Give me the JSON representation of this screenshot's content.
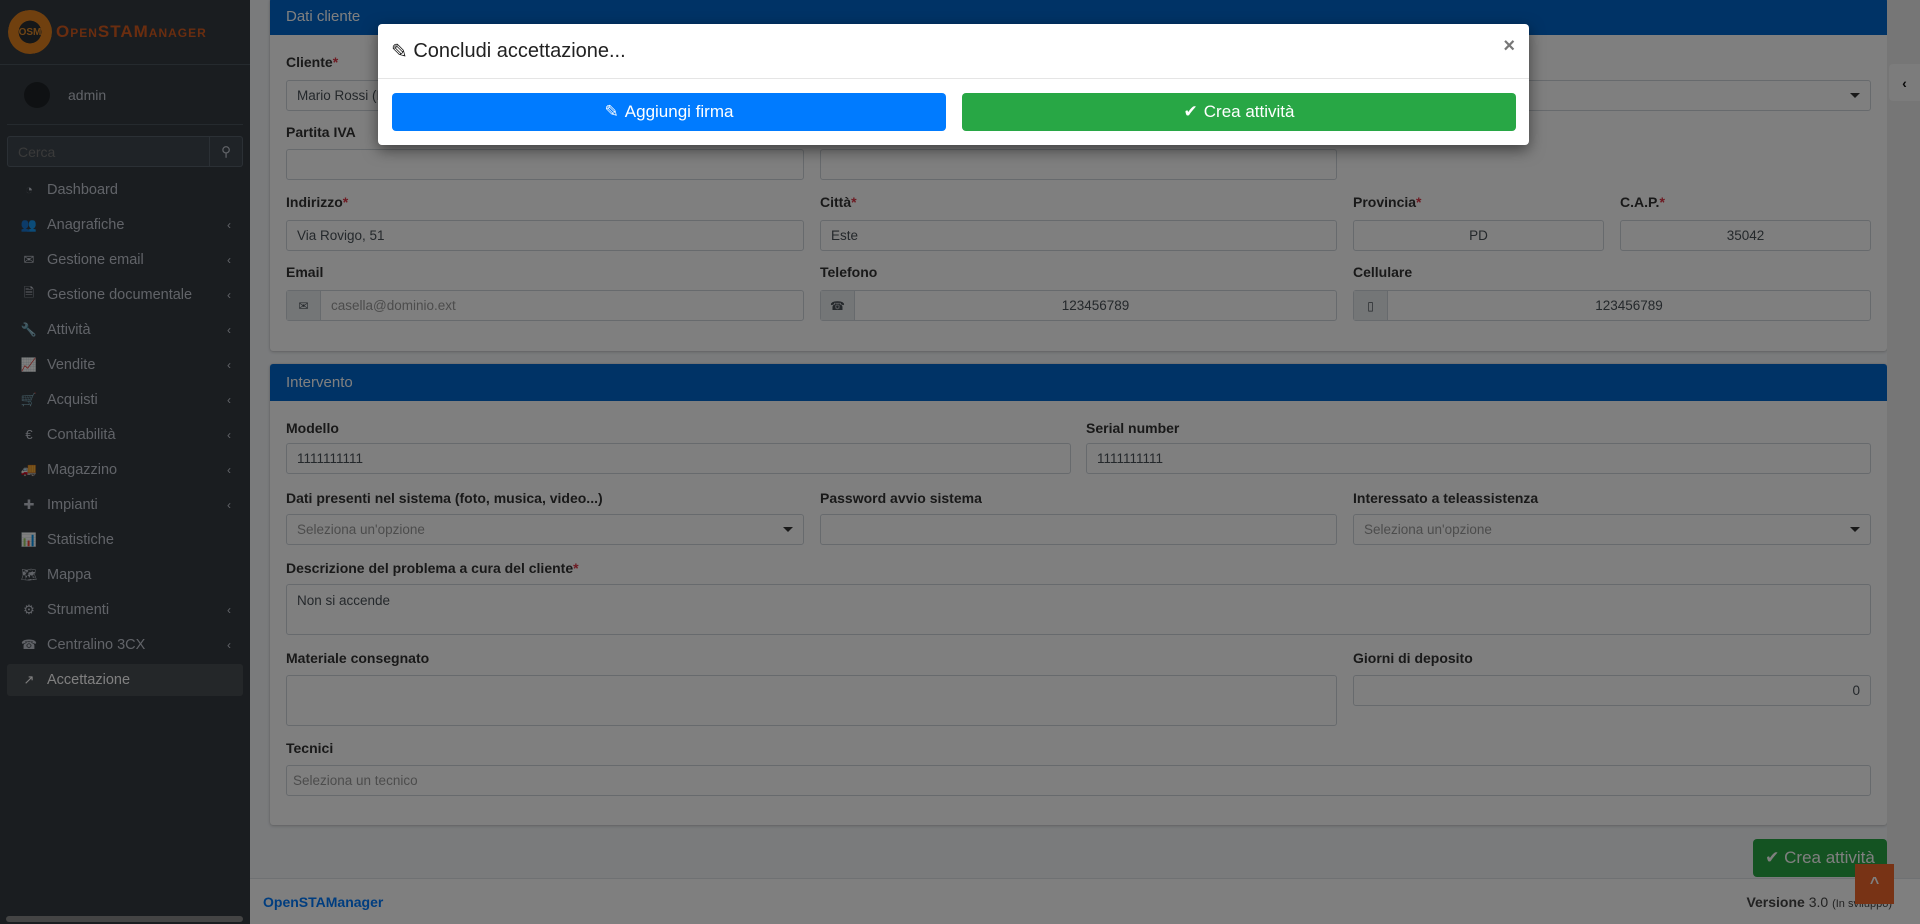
{
  "brand": {
    "logo_text": "OpenSTAManager",
    "logo_badge": "OSM"
  },
  "user": {
    "name": "admin"
  },
  "search": {
    "placeholder": "Cerca"
  },
  "menu": [
    {
      "label": "Dashboard",
      "icon": "dashboard-icon",
      "glyph": "◔",
      "chev": false
    },
    {
      "label": "Anagrafiche",
      "icon": "users-icon",
      "glyph": "👥",
      "chev": true
    },
    {
      "label": "Gestione email",
      "icon": "envelope-icon",
      "glyph": "✉",
      "chev": true
    },
    {
      "label": "Gestione documentale",
      "icon": "file-icon",
      "glyph": "🗎",
      "chev": true
    },
    {
      "label": "Attività",
      "icon": "wrench-icon",
      "glyph": "🔧",
      "chev": true
    },
    {
      "label": "Vendite",
      "icon": "line-chart-icon",
      "glyph": "📈",
      "chev": true
    },
    {
      "label": "Acquisti",
      "icon": "cart-icon",
      "glyph": "🛒",
      "chev": true
    },
    {
      "label": "Contabilità",
      "icon": "euro-icon",
      "glyph": "€",
      "chev": true
    },
    {
      "label": "Magazzino",
      "icon": "truck-icon",
      "glyph": "🚚",
      "chev": true
    },
    {
      "label": "Impianti",
      "icon": "puzzle-icon",
      "glyph": "✚",
      "chev": true
    },
    {
      "label": "Statistiche",
      "icon": "bar-chart-icon",
      "glyph": "📊",
      "chev": false
    },
    {
      "label": "Mappa",
      "icon": "map-icon",
      "glyph": "🗺",
      "chev": false
    },
    {
      "label": "Strumenti",
      "icon": "cog-icon",
      "glyph": "⚙",
      "chev": true
    },
    {
      "label": "Centralino 3CX",
      "icon": "phone-icon",
      "glyph": "☎",
      "chev": true
    },
    {
      "label": "Accettazione",
      "icon": "external-link-icon",
      "glyph": "↗",
      "chev": false,
      "active": true
    }
  ],
  "dati_cliente": {
    "title": "Dati cliente",
    "cliente": {
      "label": "Cliente",
      "value": "Mario Rossi (E"
    },
    "partita_iva": {
      "label": "Partita IVA",
      "value": ""
    },
    "indirizzo": {
      "label": "Indirizzo",
      "value": "Via Rovigo, 51"
    },
    "citta": {
      "label": "Città",
      "value": "Este"
    },
    "provincia": {
      "label": "Provincia",
      "value": "PD"
    },
    "cap": {
      "label": "C.A.P.",
      "value": "35042"
    },
    "email": {
      "label": "Email",
      "placeholder": "casella@dominio.ext"
    },
    "telefono": {
      "label": "Telefono",
      "value": "123456789"
    },
    "cellulare": {
      "label": "Cellulare",
      "value": "123456789"
    }
  },
  "intervento": {
    "title": "Intervento",
    "modello": {
      "label": "Modello",
      "value": "1111111111"
    },
    "serial": {
      "label": "Serial number",
      "value": "1111111111"
    },
    "dati_presenti": {
      "label": "Dati presenti nel sistema (foto, musica, video...)",
      "placeholder": "Seleziona un'opzione"
    },
    "password": {
      "label": "Password avvio sistema",
      "value": ""
    },
    "teleassistenza": {
      "label": "Interessato a teleassistenza",
      "placeholder": "Seleziona un'opzione"
    },
    "descrizione": {
      "label": "Descrizione del problema a cura del cliente",
      "value": "Non si accende"
    },
    "materiale": {
      "label": "Materiale consegnato",
      "value": ""
    },
    "giorni": {
      "label": "Giorni di deposito",
      "value": "0"
    },
    "tecnici": {
      "label": "Tecnici",
      "placeholder": "Seleziona un tecnico"
    }
  },
  "required_mark": "*",
  "crea_button": "Crea attività",
  "footer": {
    "app": "OpenSTAManager",
    "version_label": "Versione",
    "version": "3.0",
    "version_note": "(In sviluppo)"
  },
  "modal": {
    "title": "Concludi accettazione...",
    "close": "×",
    "firma_button": "Aggiungi firma",
    "crea_button": "Crea attività"
  },
  "colors": {
    "primary": "#007bff",
    "success": "#28a745",
    "box_header": "#0066cc",
    "scroll_top": "#f0662a"
  }
}
